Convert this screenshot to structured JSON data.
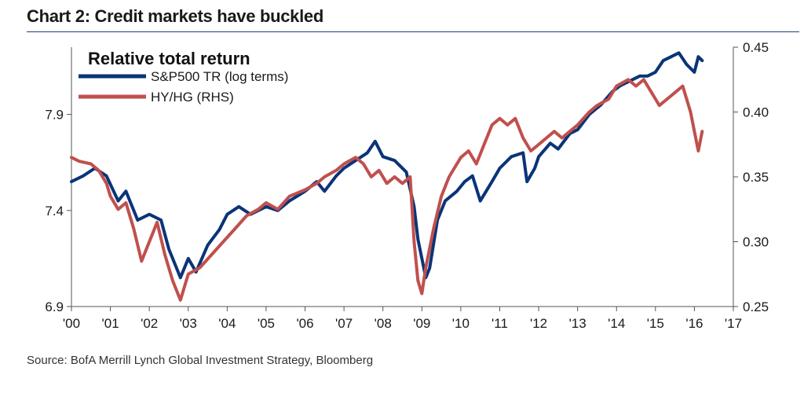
{
  "header": {
    "title": "Chart 2: Credit markets have buckled"
  },
  "footer": {
    "source": "Source: BofA Merrill Lynch Global Investment Strategy, Bloomberg"
  },
  "chart_data": {
    "type": "line",
    "legend_title": "Relative total return",
    "legend_position": "top-left",
    "grid": false,
    "x_ticks": [
      "'00",
      "'01",
      "'02",
      "'03",
      "'04",
      "'05",
      "'06",
      "'07",
      "'08",
      "'09",
      "'10",
      "'11",
      "'12",
      "'13",
      "'14",
      "'15",
      "'16",
      "'17"
    ],
    "xlim": [
      2000,
      2017
    ],
    "y_left": {
      "ticks": [
        "6.9",
        "7.4",
        "7.9"
      ],
      "lim": [
        6.9,
        8.25
      ]
    },
    "y_right": {
      "ticks": [
        "0.25",
        "0.30",
        "0.35",
        "0.40",
        "0.45"
      ],
      "lim": [
        0.25,
        0.45
      ]
    },
    "series": [
      {
        "name": "S&P500 TR (log terms)",
        "axis": "left",
        "color": "#0a3478",
        "points": [
          [
            2000.0,
            7.55
          ],
          [
            2000.3,
            7.58
          ],
          [
            2000.6,
            7.62
          ],
          [
            2000.9,
            7.58
          ],
          [
            2001.2,
            7.45
          ],
          [
            2001.4,
            7.5
          ],
          [
            2001.7,
            7.35
          ],
          [
            2002.0,
            7.38
          ],
          [
            2002.3,
            7.35
          ],
          [
            2002.5,
            7.2
          ],
          [
            2002.7,
            7.1
          ],
          [
            2002.8,
            7.05
          ],
          [
            2003.0,
            7.15
          ],
          [
            2003.2,
            7.08
          ],
          [
            2003.5,
            7.22
          ],
          [
            2003.8,
            7.3
          ],
          [
            2004.0,
            7.38
          ],
          [
            2004.3,
            7.42
          ],
          [
            2004.6,
            7.38
          ],
          [
            2005.0,
            7.42
          ],
          [
            2005.3,
            7.4
          ],
          [
            2005.6,
            7.45
          ],
          [
            2006.0,
            7.5
          ],
          [
            2006.3,
            7.55
          ],
          [
            2006.5,
            7.5
          ],
          [
            2006.8,
            7.58
          ],
          [
            2007.0,
            7.62
          ],
          [
            2007.3,
            7.66
          ],
          [
            2007.6,
            7.7
          ],
          [
            2007.8,
            7.76
          ],
          [
            2008.0,
            7.68
          ],
          [
            2008.3,
            7.66
          ],
          [
            2008.6,
            7.6
          ],
          [
            2008.8,
            7.42
          ],
          [
            2008.9,
            7.25
          ],
          [
            2009.1,
            7.05
          ],
          [
            2009.2,
            7.1
          ],
          [
            2009.4,
            7.35
          ],
          [
            2009.6,
            7.45
          ],
          [
            2009.9,
            7.5
          ],
          [
            2010.1,
            7.55
          ],
          [
            2010.3,
            7.58
          ],
          [
            2010.5,
            7.45
          ],
          [
            2010.8,
            7.55
          ],
          [
            2011.0,
            7.62
          ],
          [
            2011.3,
            7.68
          ],
          [
            2011.6,
            7.7
          ],
          [
            2011.7,
            7.55
          ],
          [
            2011.9,
            7.62
          ],
          [
            2012.0,
            7.68
          ],
          [
            2012.3,
            7.75
          ],
          [
            2012.5,
            7.72
          ],
          [
            2012.8,
            7.8
          ],
          [
            2013.0,
            7.82
          ],
          [
            2013.3,
            7.9
          ],
          [
            2013.6,
            7.95
          ],
          [
            2013.9,
            8.02
          ],
          [
            2014.1,
            8.05
          ],
          [
            2014.4,
            8.08
          ],
          [
            2014.6,
            8.1
          ],
          [
            2014.8,
            8.1
          ],
          [
            2015.0,
            8.12
          ],
          [
            2015.2,
            8.18
          ],
          [
            2015.4,
            8.2
          ],
          [
            2015.6,
            8.22
          ],
          [
            2015.8,
            8.16
          ],
          [
            2016.0,
            8.12
          ],
          [
            2016.1,
            8.2
          ],
          [
            2016.2,
            8.18
          ]
        ]
      },
      {
        "name": "HY/HG (RHS)",
        "axis": "right",
        "color": "#c0504d",
        "points": [
          [
            2000.0,
            0.365
          ],
          [
            2000.2,
            0.362
          ],
          [
            2000.5,
            0.36
          ],
          [
            2000.7,
            0.355
          ],
          [
            2000.9,
            0.345
          ],
          [
            2001.0,
            0.335
          ],
          [
            2001.2,
            0.325
          ],
          [
            2001.4,
            0.33
          ],
          [
            2001.6,
            0.31
          ],
          [
            2001.8,
            0.285
          ],
          [
            2002.0,
            0.3
          ],
          [
            2002.2,
            0.315
          ],
          [
            2002.4,
            0.29
          ],
          [
            2002.6,
            0.27
          ],
          [
            2002.8,
            0.255
          ],
          [
            2003.0,
            0.275
          ],
          [
            2003.3,
            0.28
          ],
          [
            2003.6,
            0.29
          ],
          [
            2003.9,
            0.3
          ],
          [
            2004.2,
            0.31
          ],
          [
            2004.5,
            0.32
          ],
          [
            2004.8,
            0.325
          ],
          [
            2005.0,
            0.33
          ],
          [
            2005.3,
            0.325
          ],
          [
            2005.6,
            0.335
          ],
          [
            2006.0,
            0.34
          ],
          [
            2006.3,
            0.345
          ],
          [
            2006.5,
            0.35
          ],
          [
            2006.8,
            0.355
          ],
          [
            2007.0,
            0.36
          ],
          [
            2007.3,
            0.365
          ],
          [
            2007.5,
            0.36
          ],
          [
            2007.7,
            0.35
          ],
          [
            2007.9,
            0.355
          ],
          [
            2008.1,
            0.345
          ],
          [
            2008.3,
            0.35
          ],
          [
            2008.5,
            0.345
          ],
          [
            2008.7,
            0.35
          ],
          [
            2008.8,
            0.3
          ],
          [
            2008.9,
            0.27
          ],
          [
            2009.0,
            0.26
          ],
          [
            2009.1,
            0.28
          ],
          [
            2009.3,
            0.31
          ],
          [
            2009.5,
            0.335
          ],
          [
            2009.7,
            0.35
          ],
          [
            2010.0,
            0.365
          ],
          [
            2010.2,
            0.37
          ],
          [
            2010.4,
            0.36
          ],
          [
            2010.6,
            0.375
          ],
          [
            2010.8,
            0.39
          ],
          [
            2011.0,
            0.395
          ],
          [
            2011.2,
            0.39
          ],
          [
            2011.4,
            0.395
          ],
          [
            2011.6,
            0.38
          ],
          [
            2011.8,
            0.37
          ],
          [
            2012.0,
            0.375
          ],
          [
            2012.2,
            0.38
          ],
          [
            2012.4,
            0.385
          ],
          [
            2012.6,
            0.38
          ],
          [
            2012.8,
            0.385
          ],
          [
            2013.0,
            0.39
          ],
          [
            2013.3,
            0.4
          ],
          [
            2013.5,
            0.405
          ],
          [
            2013.8,
            0.41
          ],
          [
            2014.0,
            0.42
          ],
          [
            2014.3,
            0.425
          ],
          [
            2014.5,
            0.42
          ],
          [
            2014.7,
            0.425
          ],
          [
            2014.9,
            0.415
          ],
          [
            2015.1,
            0.405
          ],
          [
            2015.3,
            0.41
          ],
          [
            2015.5,
            0.415
          ],
          [
            2015.7,
            0.42
          ],
          [
            2015.9,
            0.4
          ],
          [
            2016.0,
            0.385
          ],
          [
            2016.1,
            0.37
          ],
          [
            2016.2,
            0.385
          ]
        ]
      }
    ]
  }
}
